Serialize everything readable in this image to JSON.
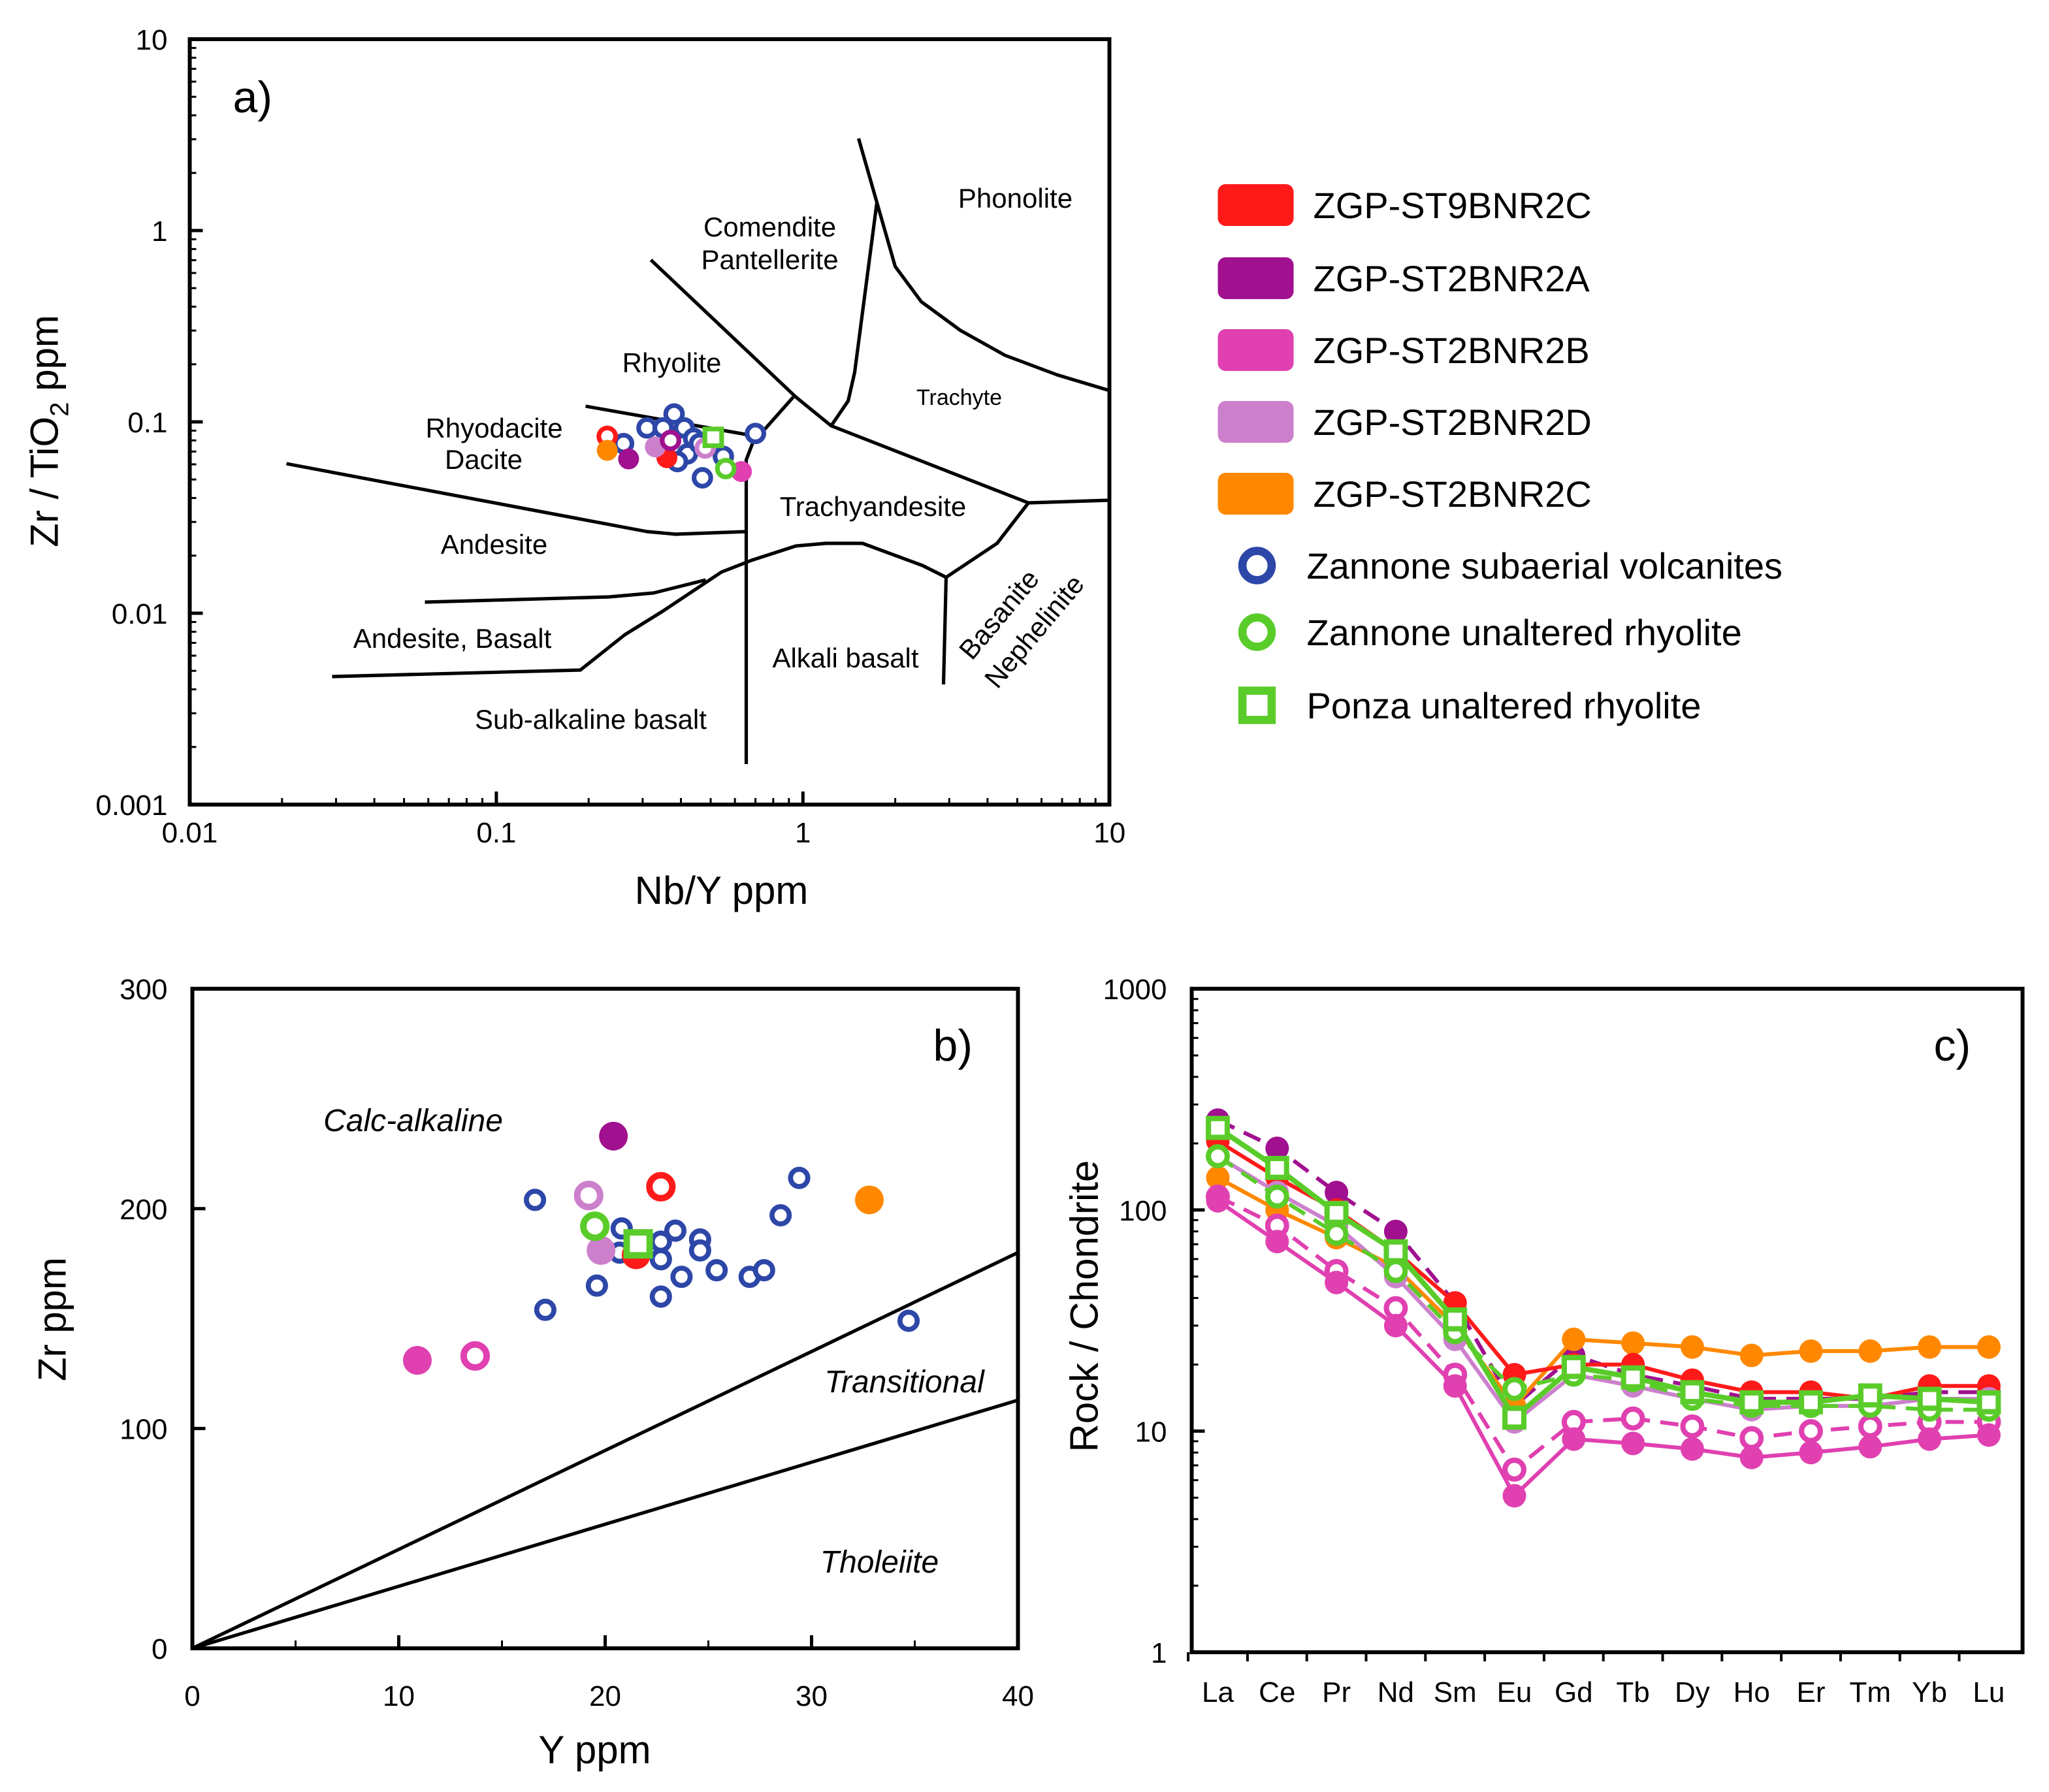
{
  "legend": {
    "entries": [
      {
        "label": "ZGP-ST9BNR2C",
        "marker": "swatch",
        "color": "#ff1a1a"
      },
      {
        "label": "ZGP-ST2BNR2A",
        "marker": "swatch",
        "color": "#a0108f"
      },
      {
        "label": "ZGP-ST2BNR2B",
        "marker": "swatch",
        "color": "#e040b0"
      },
      {
        "label": "ZGP-ST2BNR2D",
        "marker": "swatch",
        "color": "#cc80cc"
      },
      {
        "label": "ZGP-ST2BNR2C",
        "marker": "swatch",
        "color": "#ff8800"
      },
      {
        "label": "Zannone subaerial volcanites",
        "marker": "open-circle",
        "color": "#2d47a8"
      },
      {
        "label": "Zannone unaltered rhyolite",
        "marker": "open-circle",
        "color": "#5acc2a"
      },
      {
        "label": "Ponza  unaltered rhyolite",
        "marker": "open-square",
        "color": "#5acc2a"
      }
    ]
  },
  "chart_data": [
    {
      "panel": "a)",
      "type": "scatter",
      "xlabel": "Nb/Y ppm",
      "ylabel_parts": [
        "Zr / TiO",
        "2",
        " ppm"
      ],
      "xscale": "log",
      "yscale": "log",
      "xlim": [
        0.01,
        10
      ],
      "ylim": [
        0.001,
        10
      ],
      "xticks": [
        "0.01",
        "0.1",
        "1",
        "10"
      ],
      "yticks": [
        "10",
        "1",
        "0.1",
        "0.01",
        "0.001"
      ],
      "annotations": [
        "Phonolite",
        "Comendite",
        "Pantellerite",
        "Rhyolite",
        "Trachyte",
        "Rhyodacite",
        "Dacite",
        "Trachyandesite",
        "Andesite",
        "Andesite, Basalt",
        "Alkali basalt",
        "Basanite",
        "Nephelinite",
        "Sub-alkaline basalt"
      ],
      "points": [
        {
          "x": 0.26,
          "y": 0.077,
          "color": "#2d47a8",
          "marker": "open-circle"
        },
        {
          "x": 0.31,
          "y": 0.093,
          "color": "#2d47a8",
          "marker": "open-circle"
        },
        {
          "x": 0.35,
          "y": 0.093,
          "color": "#2d47a8",
          "marker": "open-circle"
        },
        {
          "x": 0.38,
          "y": 0.11,
          "color": "#2d47a8",
          "marker": "open-circle"
        },
        {
          "x": 0.41,
          "y": 0.093,
          "color": "#2d47a8",
          "marker": "open-circle"
        },
        {
          "x": 0.44,
          "y": 0.082,
          "color": "#2d47a8",
          "marker": "open-circle"
        },
        {
          "x": 0.42,
          "y": 0.068,
          "color": "#2d47a8",
          "marker": "open-circle"
        },
        {
          "x": 0.39,
          "y": 0.062,
          "color": "#2d47a8",
          "marker": "open-circle"
        },
        {
          "x": 0.47,
          "y": 0.051,
          "color": "#2d47a8",
          "marker": "open-circle"
        },
        {
          "x": 0.55,
          "y": 0.066,
          "color": "#2d47a8",
          "marker": "open-circle"
        },
        {
          "x": 0.7,
          "y": 0.087,
          "color": "#2d47a8",
          "marker": "open-circle"
        },
        {
          "x": 0.46,
          "y": 0.077,
          "color": "#2d47a8",
          "marker": "open-circle"
        },
        {
          "x": 0.23,
          "y": 0.084,
          "color": "#ff1a1a",
          "marker": "open-circle"
        },
        {
          "x": 0.23,
          "y": 0.071,
          "color": "#ff8800",
          "marker": "filled-circle"
        },
        {
          "x": 0.27,
          "y": 0.064,
          "color": "#a0108f",
          "marker": "filled-circle"
        },
        {
          "x": 0.36,
          "y": 0.065,
          "color": "#ff1a1a",
          "marker": "filled-circle"
        },
        {
          "x": 0.33,
          "y": 0.074,
          "color": "#cc80cc",
          "marker": "filled-circle"
        },
        {
          "x": 0.37,
          "y": 0.08,
          "color": "#a0108f",
          "marker": "open-circle"
        },
        {
          "x": 0.48,
          "y": 0.073,
          "color": "#cc80cc",
          "marker": "open-circle"
        },
        {
          "x": 0.63,
          "y": 0.055,
          "color": "#e040b0",
          "marker": "filled-circle"
        },
        {
          "x": 0.56,
          "y": 0.057,
          "color": "#5acc2a",
          "marker": "open-circle"
        },
        {
          "x": 0.51,
          "y": 0.083,
          "color": "#5acc2a",
          "marker": "open-square"
        }
      ]
    },
    {
      "panel": "b)",
      "type": "scatter",
      "xlabel": "Y ppm",
      "ylabel": "Zr ppm",
      "xlim": [
        0,
        40
      ],
      "ylim": [
        0,
        300
      ],
      "xticks": [
        "0",
        "10",
        "20",
        "30",
        "40"
      ],
      "yticks": [
        "0",
        "100",
        "200",
        "300"
      ],
      "annotations": [
        "Calc-alkaline",
        "Transitional",
        "Tholeiite"
      ],
      "boundaries": [
        {
          "from": [
            0,
            0
          ],
          "to": [
            40,
            180
          ]
        },
        {
          "from": [
            0,
            0
          ],
          "to": [
            40,
            113
          ]
        }
      ],
      "points": [
        {
          "x": 16.6,
          "y": 204,
          "color": "#2d47a8",
          "marker": "open-circle-small"
        },
        {
          "x": 17.1,
          "y": 154,
          "color": "#2d47a8",
          "marker": "open-circle-small"
        },
        {
          "x": 19.6,
          "y": 165,
          "color": "#2d47a8",
          "marker": "open-circle-small"
        },
        {
          "x": 20.8,
          "y": 191,
          "color": "#2d47a8",
          "marker": "open-circle-small"
        },
        {
          "x": 20.7,
          "y": 180,
          "color": "#2d47a8",
          "marker": "open-circle-small"
        },
        {
          "x": 22.7,
          "y": 185,
          "color": "#2d47a8",
          "marker": "open-circle-small"
        },
        {
          "x": 23.4,
          "y": 190,
          "color": "#2d47a8",
          "marker": "open-circle-small"
        },
        {
          "x": 22.7,
          "y": 177,
          "color": "#2d47a8",
          "marker": "open-circle-small"
        },
        {
          "x": 22.7,
          "y": 160,
          "color": "#2d47a8",
          "marker": "open-circle-small"
        },
        {
          "x": 23.7,
          "y": 169,
          "color": "#2d47a8",
          "marker": "open-circle-small"
        },
        {
          "x": 24.6,
          "y": 186,
          "color": "#2d47a8",
          "marker": "open-circle-small"
        },
        {
          "x": 24.6,
          "y": 181,
          "color": "#2d47a8",
          "marker": "open-circle-small"
        },
        {
          "x": 25.4,
          "y": 172,
          "color": "#2d47a8",
          "marker": "open-circle-small"
        },
        {
          "x": 27.0,
          "y": 169,
          "color": "#2d47a8",
          "marker": "open-circle-small"
        },
        {
          "x": 27.7,
          "y": 172,
          "color": "#2d47a8",
          "marker": "open-circle-small"
        },
        {
          "x": 28.5,
          "y": 197,
          "color": "#2d47a8",
          "marker": "open-circle-small"
        },
        {
          "x": 29.4,
          "y": 214,
          "color": "#2d47a8",
          "marker": "open-circle-small"
        },
        {
          "x": 34.7,
          "y": 149,
          "color": "#2d47a8",
          "marker": "open-circle-small"
        },
        {
          "x": 21.5,
          "y": 179,
          "color": "#ff1a1a",
          "marker": "filled-circle"
        },
        {
          "x": 20.4,
          "y": 233,
          "color": "#a0108f",
          "marker": "filled-circle"
        },
        {
          "x": 22.7,
          "y": 210,
          "color": "#ff1a1a",
          "marker": "open-circle"
        },
        {
          "x": 32.8,
          "y": 204,
          "color": "#ff8800",
          "marker": "filled-circle"
        },
        {
          "x": 19.2,
          "y": 206,
          "color": "#cc80cc",
          "marker": "open-circle"
        },
        {
          "x": 19.8,
          "y": 181,
          "color": "#cc80cc",
          "marker": "filled-circle"
        },
        {
          "x": 19.5,
          "y": 192,
          "color": "#5acc2a",
          "marker": "open-circle"
        },
        {
          "x": 21.6,
          "y": 184,
          "color": "#5acc2a",
          "marker": "open-square"
        },
        {
          "x": 10.9,
          "y": 131,
          "color": "#e040b0",
          "marker": "filled-circle"
        },
        {
          "x": 13.7,
          "y": 133,
          "color": "#e040b0",
          "marker": "open-circle"
        }
      ]
    },
    {
      "panel": "c)",
      "type": "line",
      "ylabel": "Rock / Chondrite",
      "yscale": "log",
      "ylim": [
        1,
        1000
      ],
      "yticks": [
        "1000",
        "100",
        "10",
        "1"
      ],
      "categories": [
        "La",
        "Ce",
        "Pr",
        "Nd",
        "Sm",
        "Eu",
        "Gd",
        "Tb",
        "Dy",
        "Ho",
        "Er",
        "Tm",
        "Yb",
        "Lu"
      ],
      "series": [
        {
          "name": "ZGP-ST2BNR2A",
          "color": "#a0108f",
          "marker": "filled-circle",
          "dashed": true,
          "values": [
            255,
            190,
            120,
            80,
            38,
            13,
            22,
            18,
            16,
            14,
            14,
            14,
            15,
            15
          ]
        },
        {
          "name": "ZGP-ST2BNR2C",
          "color": "#ff8800",
          "marker": "filled-circle",
          "dashed": false,
          "values": [
            140,
            100,
            75,
            55,
            30,
            13,
            26,
            25,
            24,
            22,
            23,
            23,
            24,
            24
          ]
        },
        {
          "name": "ZGP-ST9BNR2C",
          "color": "#ff1a1a",
          "marker": "filled-circle",
          "dashed": false,
          "values": [
            205,
            140,
            100,
            65,
            38,
            18,
            20,
            20,
            17,
            15,
            15,
            14,
            16,
            16
          ]
        },
        {
          "name": "ZGP-ST2BNR2D",
          "color": "#cc80cc",
          "marker": "filled-circle",
          "dashed": false,
          "values": [
            175,
            120,
            85,
            50,
            26,
            11,
            18,
            16,
            14,
            12.5,
            13,
            13,
            14,
            14
          ]
        },
        {
          "name": "ZGP-ST2BNR2B (open)",
          "color": "#e040b0",
          "marker": "open-circle",
          "dashed": true,
          "values": [
            115,
            85,
            53,
            36,
            18,
            6.7,
            11,
            11.4,
            10.5,
            9.3,
            10,
            10.5,
            11,
            11
          ]
        },
        {
          "name": "ZGP-ST2BNR2B",
          "color": "#e040b0",
          "marker": "filled-circle",
          "dashed": false,
          "values": [
            110,
            72,
            47,
            30,
            16,
            5.1,
            9.2,
            8.8,
            8.3,
            7.6,
            8,
            8.5,
            9.2,
            9.6
          ]
        },
        {
          "name": "Zannone unaltered rhyolite",
          "color": "#5acc2a",
          "marker": "open-circle",
          "dashed": true,
          "values": [
            175,
            115,
            78,
            53,
            28,
            15.5,
            18,
            17,
            14,
            13,
            13,
            13,
            12.5,
            12.5
          ]
        },
        {
          "name": "Ponza  unaltered rhyolite",
          "color": "#5acc2a",
          "marker": "open-square",
          "dashed": false,
          "values": [
            235,
            155,
            97,
            65,
            32,
            11.5,
            19.5,
            17.5,
            15,
            13.5,
            13.5,
            14.5,
            14,
            13.5
          ]
        }
      ]
    }
  ]
}
